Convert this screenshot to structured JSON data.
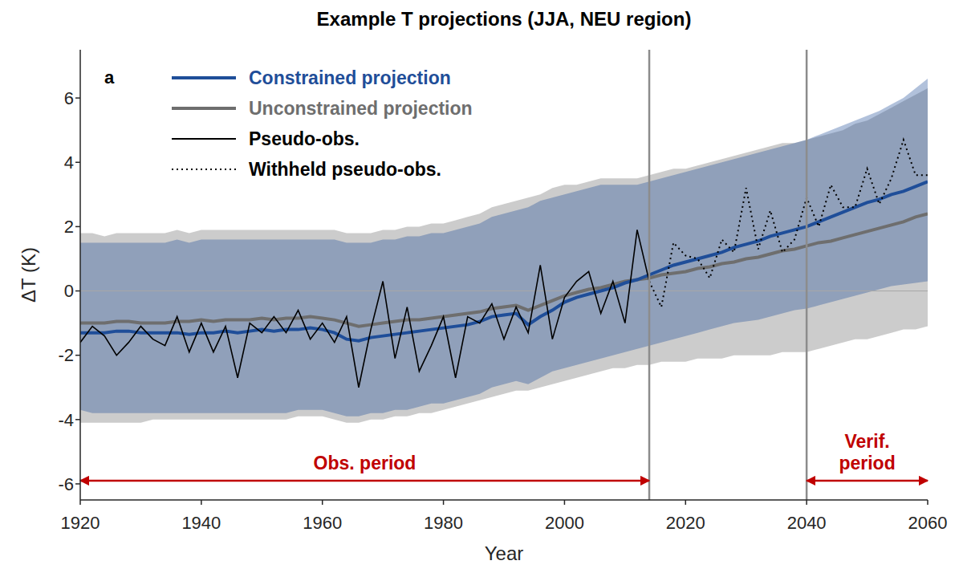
{
  "chart_data": {
    "type": "line",
    "title": "Example T projections (JJA, NEU region)",
    "panel_label": "a",
    "x_label": "Year",
    "y_label": "ΔT (K)",
    "xlim": [
      1920,
      2060
    ],
    "xticks": [
      1920,
      1940,
      1960,
      1980,
      2000,
      2020,
      2040,
      2060
    ],
    "ylim": [
      -6.5,
      7.5
    ],
    "yticks": [
      -6,
      -4,
      -2,
      0,
      2,
      4,
      6
    ],
    "grid": false,
    "legend": "upper left",
    "zero_line": 0,
    "x": [
      1920,
      1922,
      1924,
      1926,
      1928,
      1930,
      1932,
      1934,
      1936,
      1938,
      1940,
      1942,
      1944,
      1946,
      1948,
      1950,
      1952,
      1954,
      1956,
      1958,
      1960,
      1962,
      1964,
      1966,
      1968,
      1970,
      1972,
      1974,
      1976,
      1978,
      1980,
      1982,
      1984,
      1986,
      1988,
      1990,
      1992,
      1994,
      1996,
      1998,
      2000,
      2002,
      2004,
      2006,
      2008,
      2010,
      2012,
      2014,
      2016,
      2018,
      2020,
      2022,
      2024,
      2026,
      2028,
      2030,
      2032,
      2034,
      2036,
      2038,
      2040,
      2042,
      2044,
      2046,
      2048,
      2050,
      2052,
      2054,
      2056,
      2058,
      2060
    ],
    "series": [
      {
        "name": "Constrained projection",
        "color": "#1f4e99",
        "line_style": "solid",
        "values": [
          -1.3,
          -1.3,
          -1.3,
          -1.25,
          -1.25,
          -1.3,
          -1.3,
          -1.3,
          -1.3,
          -1.35,
          -1.3,
          -1.3,
          -1.25,
          -1.3,
          -1.25,
          -1.2,
          -1.25,
          -1.2,
          -1.2,
          -1.15,
          -1.2,
          -1.3,
          -1.5,
          -1.55,
          -1.45,
          -1.4,
          -1.35,
          -1.3,
          -1.25,
          -1.2,
          -1.15,
          -1.1,
          -1.05,
          -0.95,
          -0.8,
          -0.75,
          -0.7,
          -1.05,
          -0.8,
          -0.6,
          -0.35,
          -0.2,
          -0.1,
          0.0,
          0.1,
          0.25,
          0.35,
          0.5,
          0.65,
          0.8,
          0.9,
          1.0,
          1.1,
          1.2,
          1.35,
          1.45,
          1.55,
          1.7,
          1.8,
          1.9,
          2.0,
          2.15,
          2.3,
          2.45,
          2.6,
          2.75,
          2.85,
          3.0,
          3.1,
          3.25,
          3.4
        ],
        "lower": [
          -3.7,
          -3.8,
          -3.8,
          -3.8,
          -3.8,
          -3.8,
          -3.8,
          -3.8,
          -3.8,
          -3.8,
          -3.8,
          -3.8,
          -3.8,
          -3.8,
          -3.8,
          -3.8,
          -3.8,
          -3.8,
          -3.7,
          -3.7,
          -3.7,
          -3.8,
          -3.9,
          -3.9,
          -3.8,
          -3.8,
          -3.7,
          -3.7,
          -3.6,
          -3.5,
          -3.5,
          -3.4,
          -3.3,
          -3.2,
          -3.0,
          -2.9,
          -2.8,
          -2.9,
          -2.7,
          -2.5,
          -2.4,
          -2.3,
          -2.2,
          -2.1,
          -2.0,
          -1.9,
          -1.8,
          -1.7,
          -1.6,
          -1.5,
          -1.4,
          -1.3,
          -1.2,
          -1.1,
          -1.0,
          -0.95,
          -0.9,
          -0.8,
          -0.7,
          -0.6,
          -0.55,
          -0.45,
          -0.35,
          -0.25,
          -0.15,
          -0.05,
          0.05,
          0.15,
          0.2,
          0.25,
          0.3
        ],
        "upper": [
          1.5,
          1.5,
          1.5,
          1.5,
          1.5,
          1.5,
          1.5,
          1.5,
          1.6,
          1.5,
          1.6,
          1.6,
          1.6,
          1.6,
          1.6,
          1.6,
          1.6,
          1.6,
          1.6,
          1.6,
          1.6,
          1.6,
          1.5,
          1.5,
          1.5,
          1.6,
          1.6,
          1.7,
          1.7,
          1.8,
          1.8,
          1.9,
          2.0,
          2.1,
          2.3,
          2.4,
          2.5,
          2.6,
          2.8,
          2.9,
          3.0,
          3.1,
          3.2,
          3.3,
          3.3,
          3.3,
          3.3,
          3.4,
          3.5,
          3.6,
          3.7,
          3.8,
          3.9,
          4.0,
          4.1,
          4.2,
          4.3,
          4.4,
          4.5,
          4.6,
          4.7,
          4.85,
          5.0,
          5.15,
          5.3,
          5.45,
          5.6,
          5.8,
          6.0,
          6.3,
          6.6
        ]
      },
      {
        "name": "Unconstrained projection",
        "color": "#6e6e6e",
        "line_style": "solid",
        "values": [
          -1.0,
          -1.0,
          -1.0,
          -0.95,
          -0.95,
          -1.0,
          -1.0,
          -1.0,
          -0.95,
          -0.95,
          -0.9,
          -0.95,
          -0.9,
          -0.9,
          -0.9,
          -0.85,
          -0.9,
          -0.85,
          -0.85,
          -0.8,
          -0.85,
          -0.9,
          -1.0,
          -1.1,
          -1.05,
          -1.0,
          -0.95,
          -0.9,
          -0.9,
          -0.85,
          -0.8,
          -0.75,
          -0.7,
          -0.65,
          -0.55,
          -0.5,
          -0.45,
          -0.6,
          -0.45,
          -0.3,
          -0.15,
          -0.05,
          0.05,
          0.1,
          0.2,
          0.3,
          0.35,
          0.4,
          0.5,
          0.55,
          0.6,
          0.7,
          0.75,
          0.85,
          0.9,
          1.0,
          1.05,
          1.15,
          1.25,
          1.3,
          1.4,
          1.5,
          1.55,
          1.65,
          1.75,
          1.85,
          1.95,
          2.05,
          2.15,
          2.3,
          2.4
        ],
        "lower": [
          -4.1,
          -4.1,
          -4.1,
          -4.1,
          -4.1,
          -4.1,
          -4.0,
          -4.0,
          -4.0,
          -4.0,
          -4.0,
          -4.0,
          -4.0,
          -4.0,
          -4.0,
          -4.0,
          -4.0,
          -4.0,
          -3.9,
          -3.9,
          -3.9,
          -4.0,
          -4.1,
          -4.1,
          -4.0,
          -4.0,
          -3.9,
          -3.9,
          -3.8,
          -3.8,
          -3.7,
          -3.6,
          -3.5,
          -3.4,
          -3.3,
          -3.2,
          -3.1,
          -3.1,
          -3.0,
          -2.9,
          -2.8,
          -2.7,
          -2.6,
          -2.5,
          -2.4,
          -2.4,
          -2.3,
          -2.3,
          -2.2,
          -2.2,
          -2.2,
          -2.1,
          -2.1,
          -2.1,
          -2.0,
          -2.0,
          -2.0,
          -2.0,
          -1.9,
          -1.9,
          -1.9,
          -1.8,
          -1.7,
          -1.6,
          -1.5,
          -1.5,
          -1.4,
          -1.3,
          -1.2,
          -1.2,
          -1.1
        ],
        "upper": [
          1.8,
          1.8,
          1.7,
          1.8,
          1.8,
          1.8,
          1.8,
          1.8,
          1.9,
          1.8,
          1.9,
          1.9,
          1.9,
          1.9,
          1.9,
          1.9,
          1.9,
          1.9,
          1.9,
          1.9,
          1.9,
          1.9,
          1.8,
          1.8,
          1.8,
          1.9,
          1.9,
          2.0,
          2.0,
          2.1,
          2.1,
          2.2,
          2.3,
          2.4,
          2.6,
          2.7,
          2.8,
          2.9,
          3.0,
          3.2,
          3.3,
          3.3,
          3.4,
          3.5,
          3.5,
          3.5,
          3.5,
          3.6,
          3.7,
          3.8,
          3.8,
          3.9,
          4.0,
          4.1,
          4.2,
          4.3,
          4.4,
          4.5,
          4.6,
          4.6,
          4.7,
          4.8,
          4.9,
          5.0,
          5.2,
          5.3,
          5.5,
          5.7,
          5.9,
          6.1,
          6.3
        ]
      },
      {
        "name": "Pseudo-obs.",
        "color": "#000000",
        "line_style": "solid",
        "values": [
          -1.6,
          -1.1,
          -1.4,
          -2.0,
          -1.6,
          -1.1,
          -1.5,
          -1.7,
          -0.8,
          -1.9,
          -1.0,
          -1.9,
          -1.1,
          -2.7,
          -1.0,
          -1.3,
          -0.8,
          -1.3,
          -0.6,
          -1.5,
          -1.0,
          -1.6,
          -0.8,
          -3.0,
          -1.2,
          0.3,
          -2.1,
          -0.5,
          -2.5,
          -1.7,
          -0.8,
          -2.7,
          -0.8,
          -1.0,
          -0.4,
          -1.5,
          -0.5,
          -1.3,
          0.8,
          -1.5,
          -0.2,
          0.3,
          0.6,
          -0.7,
          0.3,
          -1.0,
          1.9,
          0.3,
          null,
          null,
          null,
          null,
          null,
          null,
          null,
          null,
          null,
          null,
          null,
          null,
          null,
          null,
          null,
          null,
          null,
          null,
          null,
          null,
          null,
          null,
          null
        ]
      },
      {
        "name": "Withheld pseudo-obs.",
        "color": "#000000",
        "line_style": "dotted",
        "values": [
          null,
          null,
          null,
          null,
          null,
          null,
          null,
          null,
          null,
          null,
          null,
          null,
          null,
          null,
          null,
          null,
          null,
          null,
          null,
          null,
          null,
          null,
          null,
          null,
          null,
          null,
          null,
          null,
          null,
          null,
          null,
          null,
          null,
          null,
          null,
          null,
          null,
          null,
          null,
          null,
          null,
          null,
          null,
          null,
          null,
          null,
          null,
          0.3,
          -0.5,
          1.5,
          1.1,
          1.0,
          0.4,
          1.6,
          1.2,
          3.2,
          1.3,
          2.5,
          1.2,
          1.6,
          2.9,
          2.0,
          3.3,
          2.6,
          2.6,
          3.8,
          2.7,
          3.5,
          4.7,
          3.6,
          3.6
        ]
      }
    ],
    "periods": [
      {
        "label": "Obs. period",
        "start": 1920,
        "end": 2014,
        "color": "#c00000"
      },
      {
        "label": "Verif. period",
        "start": 2040,
        "end": 2060,
        "color": "#c00000"
      }
    ]
  }
}
